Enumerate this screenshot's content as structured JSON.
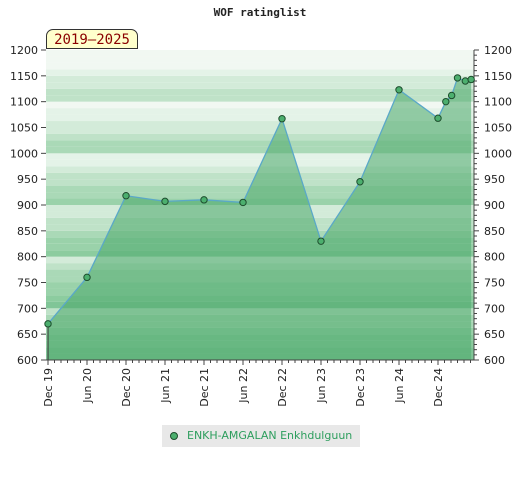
{
  "title": "WOF ratinglist",
  "badge": "2019–2025",
  "legend": {
    "label": "ENKH-AMGALAN Enkhdulguun",
    "color": "#4caf6e"
  },
  "chart_data": {
    "type": "area",
    "title": "WOF ratinglist",
    "ylim": [
      600,
      1200
    ],
    "y_ticks": [
      600,
      650,
      700,
      750,
      800,
      850,
      900,
      950,
      1000,
      1050,
      1100,
      1150,
      1200
    ],
    "x_ticks": [
      "Dec 19",
      "Jun 20",
      "Dec 20",
      "Jun 21",
      "Dec 21",
      "Jun 22",
      "Dec 22",
      "Jun 23",
      "Dec 23",
      "Jun 24",
      "Dec 24"
    ],
    "x_range": [
      0,
      11.1
    ],
    "grid": true,
    "legend_position": "bottom",
    "series": [
      {
        "name": "ENKH-AMGALAN Enkhdulguun",
        "color": "#4caf6e",
        "points": [
          {
            "x": 0,
            "y": 670
          },
          {
            "x": 1,
            "y": 760
          },
          {
            "x": 2,
            "y": 918
          },
          {
            "x": 3,
            "y": 907
          },
          {
            "x": 4,
            "y": 910
          },
          {
            "x": 5,
            "y": 905
          },
          {
            "x": 6,
            "y": 1067
          },
          {
            "x": 7,
            "y": 830
          },
          {
            "x": 8,
            "y": 945
          },
          {
            "x": 9,
            "y": 1123
          },
          {
            "x": 10,
            "y": 1068
          },
          {
            "x": 10.2,
            "y": 1100
          },
          {
            "x": 10.35,
            "y": 1112
          },
          {
            "x": 10.5,
            "y": 1146
          },
          {
            "x": 10.7,
            "y": 1140
          },
          {
            "x": 10.85,
            "y": 1143
          }
        ]
      }
    ]
  }
}
